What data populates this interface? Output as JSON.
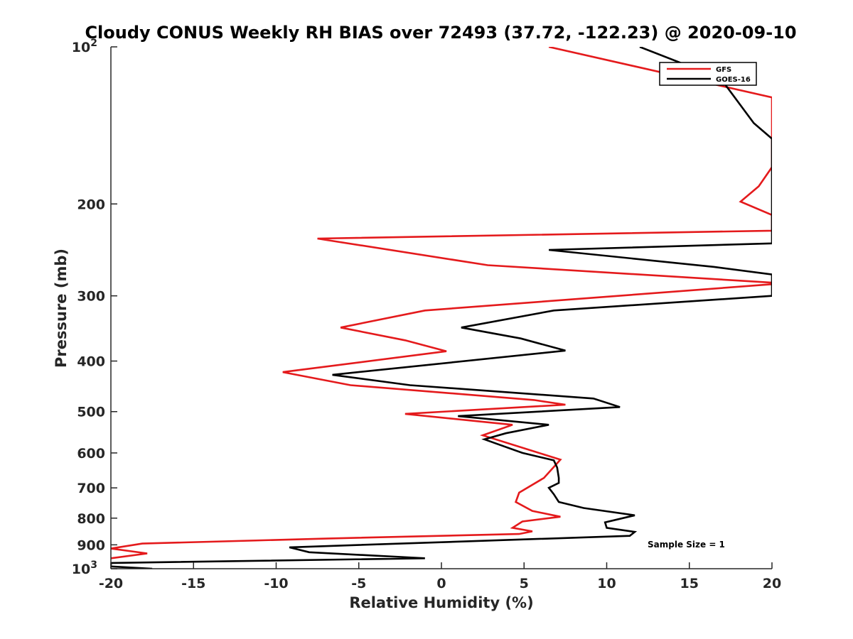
{
  "chart_data": {
    "type": "line",
    "title": "Cloudy CONUS Weekly RH BIAS over 72493 (37.72, -122.23) @ 2020-09-10",
    "xlabel": "Relative Humidity (%)",
    "ylabel": "Pressure (mb)",
    "xlim": [
      -20,
      20
    ],
    "ylim": [
      100,
      1000
    ],
    "y_scale": "log",
    "y_reversed": true,
    "grid": false,
    "legend_position": "top-right",
    "x_ticks": [
      {
        "value": -20,
        "label": "-20"
      },
      {
        "value": -15,
        "label": "-15"
      },
      {
        "value": -10,
        "label": "-10"
      },
      {
        "value": -5,
        "label": "-5"
      },
      {
        "value": 0,
        "label": "0"
      },
      {
        "value": 5,
        "label": "5"
      },
      {
        "value": 10,
        "label": "10"
      },
      {
        "value": 15,
        "label": "15"
      },
      {
        "value": 20,
        "label": "20"
      }
    ],
    "y_ticks": [
      {
        "value": 100,
        "label": "10",
        "exp": "2"
      },
      {
        "value": 200,
        "label": "200"
      },
      {
        "value": 300,
        "label": "300"
      },
      {
        "value": 400,
        "label": "400"
      },
      {
        "value": 500,
        "label": "500"
      },
      {
        "value": 600,
        "label": "600"
      },
      {
        "value": 700,
        "label": "700"
      },
      {
        "value": 800,
        "label": "800"
      },
      {
        "value": 900,
        "label": "900"
      },
      {
        "value": 1000,
        "label": "10",
        "exp": "3"
      }
    ],
    "annotation": "Sample Size = 1",
    "series": [
      {
        "name": "GFS",
        "color": "#e41a1c",
        "points": [
          [
            6.5,
            100
          ],
          [
            20,
            125
          ],
          [
            20,
            170
          ],
          [
            19.2,
            185
          ],
          [
            18.1,
            198
          ],
          [
            20,
            210
          ],
          [
            20,
            225
          ],
          [
            -7.5,
            233
          ],
          [
            2.8,
            262
          ],
          [
            20,
            283
          ],
          [
            20,
            285
          ],
          [
            -1,
            320
          ],
          [
            -6.1,
            345
          ],
          [
            -2.2,
            365
          ],
          [
            0.3,
            383
          ],
          [
            -9.6,
            420
          ],
          [
            -5.5,
            445
          ],
          [
            5.6,
            475
          ],
          [
            7.5,
            485
          ],
          [
            -2.2,
            505
          ],
          [
            4.3,
            530
          ],
          [
            2.5,
            555
          ],
          [
            7.2,
            618
          ],
          [
            6.2,
            670
          ],
          [
            4.7,
            715
          ],
          [
            4.5,
            745
          ],
          [
            5.5,
            775
          ],
          [
            7.2,
            795
          ],
          [
            4.9,
            812
          ],
          [
            4.3,
            835
          ],
          [
            5.5,
            848
          ],
          [
            4.7,
            858
          ],
          [
            -6.8,
            875
          ],
          [
            -18.1,
            895
          ],
          [
            -20,
            915
          ],
          [
            -17.8,
            935
          ],
          [
            -20,
            955
          ]
        ]
      },
      {
        "name": "GOES-16",
        "color": "#000000",
        "points": [
          [
            12,
            100
          ],
          [
            16.9,
            115
          ],
          [
            18.9,
            140
          ],
          [
            20,
            150
          ],
          [
            20,
            238
          ],
          [
            6.5,
            245
          ],
          [
            16.5,
            264
          ],
          [
            20,
            273
          ],
          [
            20,
            290
          ],
          [
            20,
            293
          ],
          [
            20,
            300
          ],
          [
            6.8,
            320
          ],
          [
            1.2,
            345
          ],
          [
            4.8,
            362
          ],
          [
            7.5,
            382
          ],
          [
            -6.6,
            425
          ],
          [
            -1.9,
            445
          ],
          [
            9.2,
            472
          ],
          [
            10.8,
            490
          ],
          [
            1,
            510
          ],
          [
            6.5,
            530
          ],
          [
            3.9,
            550
          ],
          [
            2.6,
            565
          ],
          [
            4.9,
            600
          ],
          [
            6.8,
            620
          ],
          [
            7,
            640
          ],
          [
            7.1,
            670
          ],
          [
            7.1,
            685
          ],
          [
            6.5,
            700
          ],
          [
            6.8,
            720
          ],
          [
            7.1,
            745
          ],
          [
            8.6,
            765
          ],
          [
            11.7,
            790
          ],
          [
            9.9,
            815
          ],
          [
            10,
            835
          ],
          [
            11.7,
            850
          ],
          [
            11.4,
            865
          ],
          [
            -9.2,
            910
          ],
          [
            -8,
            930
          ],
          [
            -1,
            955
          ],
          [
            -20,
            975
          ],
          [
            -20,
            990
          ],
          [
            -17.5,
            1000
          ]
        ]
      }
    ]
  }
}
